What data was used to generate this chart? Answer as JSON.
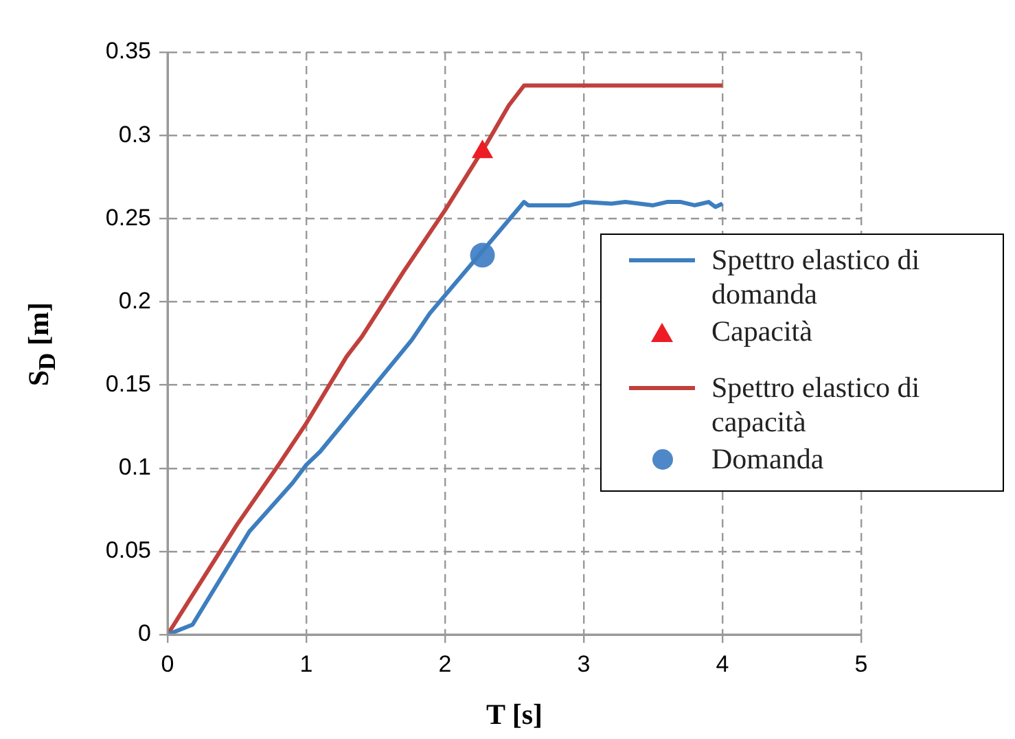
{
  "chart_data": {
    "type": "line",
    "xlabel": "T [s]",
    "ylabel": "S$_{D}$ [m]",
    "xlim": [
      0,
      5
    ],
    "xticks": [
      0,
      1,
      2,
      3,
      4,
      5
    ],
    "ylim": [
      0,
      0.35
    ],
    "yticks": [
      0,
      0.05,
      0.1,
      0.15,
      0.2,
      0.25,
      0.3,
      0.35
    ],
    "grid": true,
    "legend": "right",
    "marker": "none",
    "line_style": "solid",
    "series": [
      {
        "name": "Spettro elastico di domanda",
        "color": "#3d7ebf",
        "x": [
          0,
          0.18,
          0.59,
          0.9,
          1.0,
          1.1,
          1.76,
          1.89,
          2.57,
          2.6,
          2.9,
          3.0,
          3.2,
          3.3,
          3.5,
          3.6,
          3.7,
          3.8,
          3.9,
          3.95,
          4.0
        ],
        "values": [
          0,
          0.006,
          0.062,
          0.091,
          0.102,
          0.11,
          0.177,
          0.193,
          0.26,
          0.258,
          0.258,
          0.26,
          0.259,
          0.26,
          0.258,
          0.26,
          0.26,
          0.258,
          0.26,
          0.257,
          0.259
        ]
      },
      {
        "name": "Capacità",
        "type": "scatter",
        "marker": "triangle",
        "color": "#ee1c25",
        "x": [
          2.27
        ],
        "values": [
          0.29
        ]
      },
      {
        "name": "Spettro elastico di capacità",
        "color": "#c0403c",
        "x": [
          0,
          0.5,
          0.8,
          1.0,
          1.29,
          1.4,
          1.7,
          2.0,
          2.3,
          2.46,
          2.57,
          4.0
        ],
        "values": [
          0,
          0.066,
          0.102,
          0.127,
          0.167,
          0.179,
          0.218,
          0.255,
          0.295,
          0.318,
          0.33,
          0.33
        ]
      },
      {
        "name": "Domanda",
        "type": "scatter",
        "marker": "circle",
        "color": "#4f88c8",
        "x": [
          2.27
        ],
        "values": [
          0.228
        ]
      }
    ]
  }
}
